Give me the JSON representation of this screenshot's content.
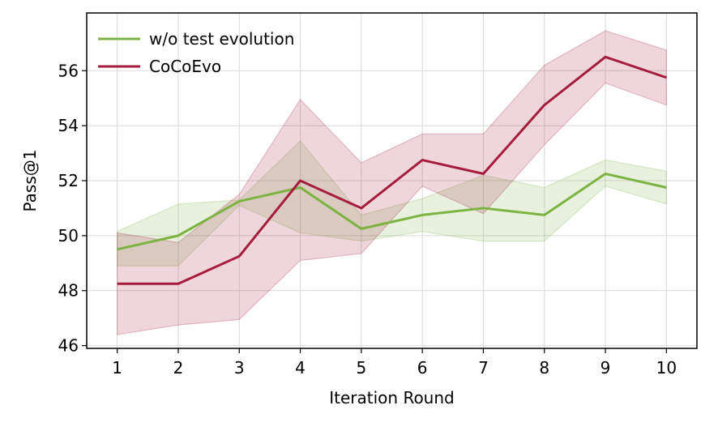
{
  "chart_data": {
    "type": "line",
    "xlabel": "Iteration Round",
    "ylabel": "Pass@1",
    "x": [
      1,
      2,
      3,
      4,
      5,
      6,
      7,
      8,
      9,
      10
    ],
    "x_ticks": [
      "1",
      "2",
      "3",
      "4",
      "5",
      "6",
      "7",
      "8",
      "9",
      "10"
    ],
    "y_ticks": [
      "46",
      "48",
      "50",
      "52",
      "54",
      "56"
    ],
    "y_tick_values": [
      46,
      48,
      50,
      52,
      54,
      56
    ],
    "xlim": [
      0.5,
      10.5
    ],
    "ylim": [
      45.9,
      58.1
    ],
    "grid": true,
    "legend_position": "top-left",
    "series": [
      {
        "name": "w/o test evolution",
        "color": "#7cb342",
        "values": [
          49.5,
          50.0,
          51.25,
          51.75,
          50.25,
          50.75,
          51.0,
          50.75,
          52.25,
          51.75
        ],
        "lower": [
          48.9,
          48.9,
          51.1,
          50.1,
          49.8,
          50.15,
          49.8,
          49.8,
          51.8,
          51.15
        ],
        "upper": [
          50.15,
          51.15,
          51.3,
          53.45,
          50.75,
          51.35,
          52.2,
          51.75,
          52.75,
          52.35
        ]
      },
      {
        "name": "CoCoEvo",
        "color": "#a51c3c",
        "values": [
          48.25,
          48.25,
          49.25,
          52.0,
          51.0,
          52.75,
          52.25,
          54.75,
          56.5,
          55.75
        ],
        "lower": [
          46.4,
          46.75,
          46.95,
          49.1,
          49.35,
          51.8,
          50.8,
          53.3,
          55.55,
          54.75
        ],
        "upper": [
          50.1,
          49.75,
          51.5,
          54.95,
          52.65,
          53.7,
          53.7,
          56.2,
          57.45,
          56.75
        ]
      }
    ]
  }
}
